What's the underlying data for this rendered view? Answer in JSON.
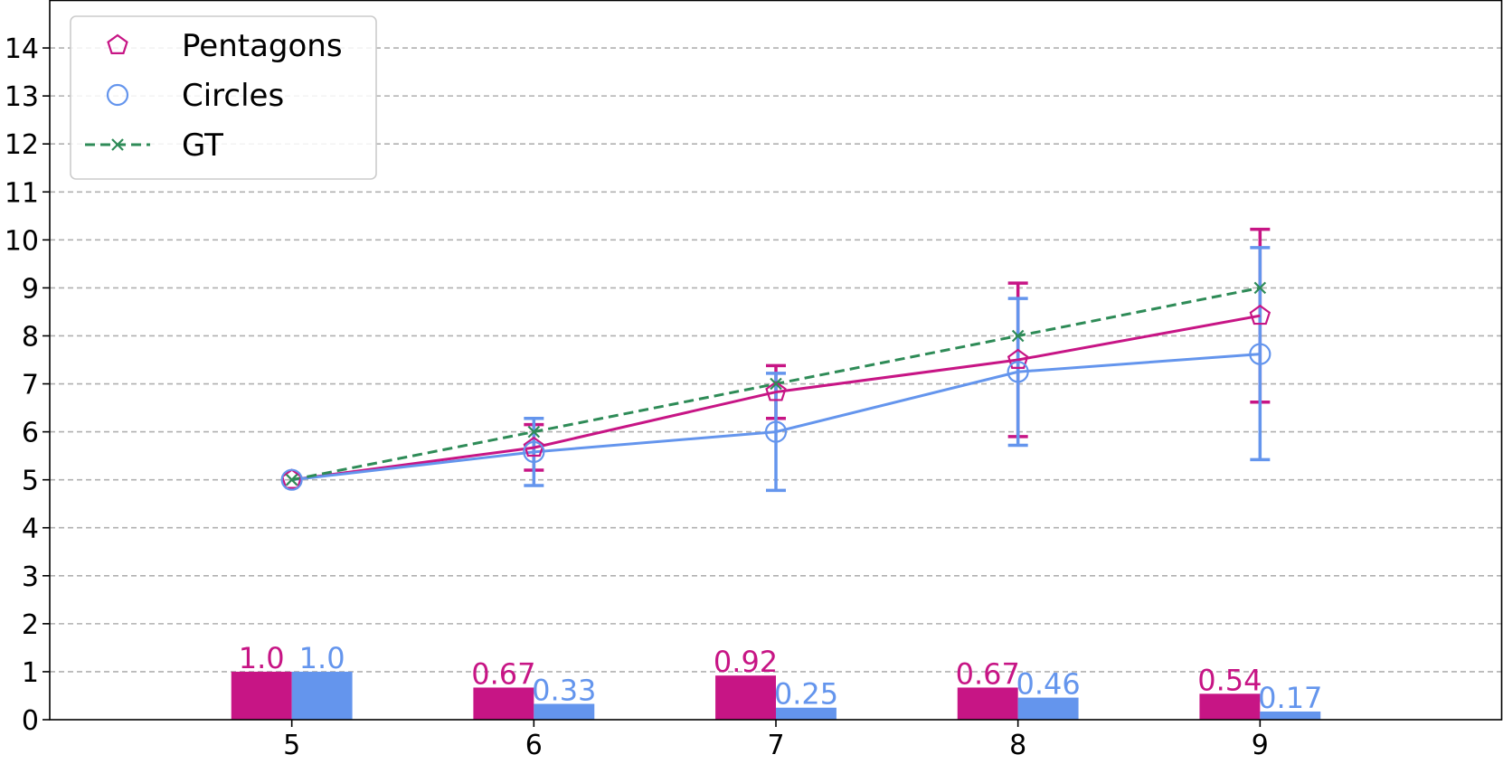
{
  "chart_data": {
    "type": "line",
    "title": "",
    "xlabel": "",
    "ylabel": "",
    "x": [
      5,
      6,
      7,
      8,
      9
    ],
    "xlim": [
      4,
      10
    ],
    "ylim": [
      0,
      15
    ],
    "yticks": [
      0,
      1,
      2,
      3,
      4,
      5,
      6,
      7,
      8,
      9,
      10,
      11,
      12,
      13,
      14
    ],
    "grid": "horizontal dashed",
    "legend_position": "top-left",
    "series": [
      {
        "name": "Pentagons",
        "color": "#C71585",
        "marker": "pentagon",
        "line": "solid",
        "values": [
          5.0,
          5.67,
          6.83,
          7.5,
          8.42
        ],
        "err_low": [
          5.0,
          5.2,
          6.28,
          5.9,
          6.62
        ],
        "err_high": [
          5.0,
          6.15,
          7.38,
          9.1,
          10.22
        ]
      },
      {
        "name": "Circles",
        "color": "#6495ED",
        "marker": "circle",
        "line": "solid",
        "values": [
          5.0,
          5.58,
          6.0,
          7.25,
          7.62
        ],
        "err_low": [
          5.0,
          4.88,
          4.78,
          5.72,
          5.42
        ],
        "err_high": [
          5.0,
          6.28,
          7.22,
          8.78,
          9.84
        ]
      },
      {
        "name": "GT",
        "color": "#2E8B57",
        "marker": "x",
        "line": "dashed",
        "values": [
          5,
          6,
          7,
          8,
          9
        ]
      }
    ],
    "bars": [
      {
        "series": "Pentagons",
        "color": "#C71585",
        "values": [
          1.0,
          0.67,
          0.92,
          0.67,
          0.54
        ],
        "labels": [
          "1.0",
          "0.67",
          "0.92",
          "0.67",
          "0.54"
        ]
      },
      {
        "series": "Circles",
        "color": "#6495ED",
        "values": [
          1.0,
          0.33,
          0.25,
          0.46,
          0.17
        ],
        "labels": [
          "1.0",
          "0.33",
          "0.25",
          "0.46",
          "0.17"
        ]
      }
    ]
  }
}
